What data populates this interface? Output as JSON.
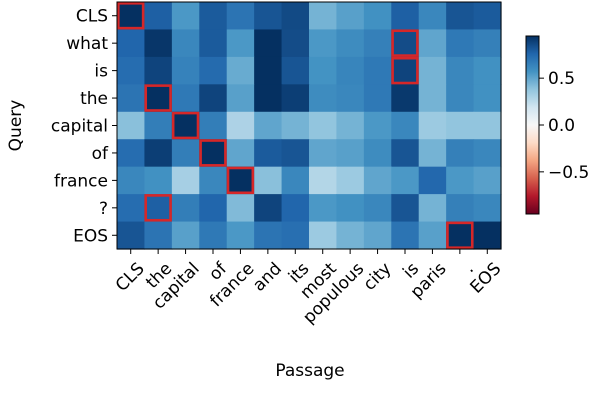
{
  "chart_data": {
    "type": "heatmap",
    "title": "",
    "xlabel": "Passage",
    "ylabel": "Query",
    "x_categories": [
      "CLS",
      "the",
      "capital",
      "of",
      "france",
      "and",
      "its",
      "most",
      "populous",
      "city",
      "is",
      "paris",
      ".",
      "EOS"
    ],
    "y_categories": [
      "CLS",
      "what",
      "is",
      "the",
      "capital",
      "of",
      "france",
      "?",
      "EOS"
    ],
    "values": [
      [
        0.98,
        0.78,
        0.55,
        0.8,
        0.7,
        0.82,
        0.86,
        0.45,
        0.52,
        0.58,
        0.78,
        0.62,
        0.82,
        0.8
      ],
      [
        0.76,
        0.93,
        0.62,
        0.8,
        0.55,
        0.96,
        0.85,
        0.55,
        0.6,
        0.65,
        0.85,
        0.5,
        0.68,
        0.65
      ],
      [
        0.73,
        0.88,
        0.64,
        0.74,
        0.48,
        0.95,
        0.82,
        0.57,
        0.63,
        0.68,
        0.88,
        0.45,
        0.62,
        0.58
      ],
      [
        0.7,
        0.97,
        0.68,
        0.88,
        0.52,
        0.95,
        0.9,
        0.6,
        0.62,
        0.68,
        0.92,
        0.45,
        0.62,
        0.58
      ],
      [
        0.4,
        0.66,
        0.98,
        0.66,
        0.3,
        0.5,
        0.45,
        0.38,
        0.45,
        0.55,
        0.62,
        0.35,
        0.38,
        0.38
      ],
      [
        0.73,
        0.9,
        0.66,
        0.98,
        0.5,
        0.8,
        0.82,
        0.5,
        0.52,
        0.6,
        0.82,
        0.45,
        0.65,
        0.62
      ],
      [
        0.62,
        0.58,
        0.32,
        0.62,
        0.98,
        0.4,
        0.62,
        0.28,
        0.35,
        0.5,
        0.55,
        0.75,
        0.55,
        0.52
      ],
      [
        0.73,
        0.78,
        0.66,
        0.76,
        0.42,
        0.88,
        0.76,
        0.55,
        0.58,
        0.62,
        0.82,
        0.45,
        0.65,
        0.62
      ],
      [
        0.82,
        0.7,
        0.52,
        0.68,
        0.55,
        0.7,
        0.72,
        0.35,
        0.45,
        0.5,
        0.7,
        0.52,
        0.98,
        0.97
      ]
    ],
    "highlighted_cells": [
      {
        "query": "CLS",
        "passage": "CLS"
      },
      {
        "query": "what",
        "passage": "is"
      },
      {
        "query": "is",
        "passage": "is"
      },
      {
        "query": "the",
        "passage": "the"
      },
      {
        "query": "capital",
        "passage": "capital"
      },
      {
        "query": "of",
        "passage": "of"
      },
      {
        "query": "france",
        "passage": "france"
      },
      {
        "query": "?",
        "passage": "the"
      },
      {
        "query": "EOS",
        "passage": "."
      }
    ],
    "colorbar": {
      "colormap": "RdBu",
      "vmin": -0.95,
      "vmax": 0.95,
      "ticks": [
        -0.5,
        0.0,
        0.5
      ],
      "tick_labels": [
        "−0.5",
        "0.0",
        "0.5"
      ]
    },
    "highlight_color": "#d62728"
  }
}
